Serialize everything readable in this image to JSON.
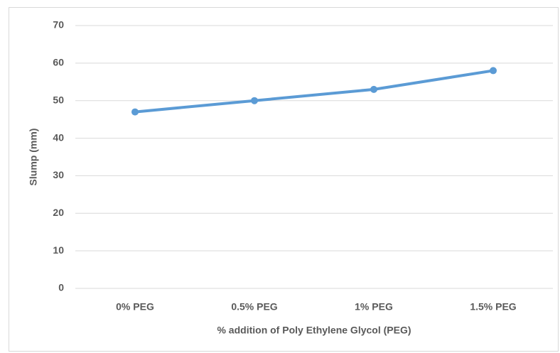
{
  "chart_data": {
    "type": "line",
    "categories": [
      "0% PEG",
      "0.5% PEG",
      "1% PEG",
      "1.5% PEG"
    ],
    "series": [
      {
        "name": "Slump",
        "color": "#5b9bd5",
        "values": [
          47,
          50,
          53,
          58
        ]
      }
    ],
    "x_label": "% addition of Poly Ethylene Glycol (PEG)",
    "y_label": "Slump (mm)",
    "ylim": [
      0,
      70
    ],
    "yticks": [
      0,
      10,
      20,
      30,
      40,
      50,
      60,
      70
    ],
    "grid": true
  }
}
